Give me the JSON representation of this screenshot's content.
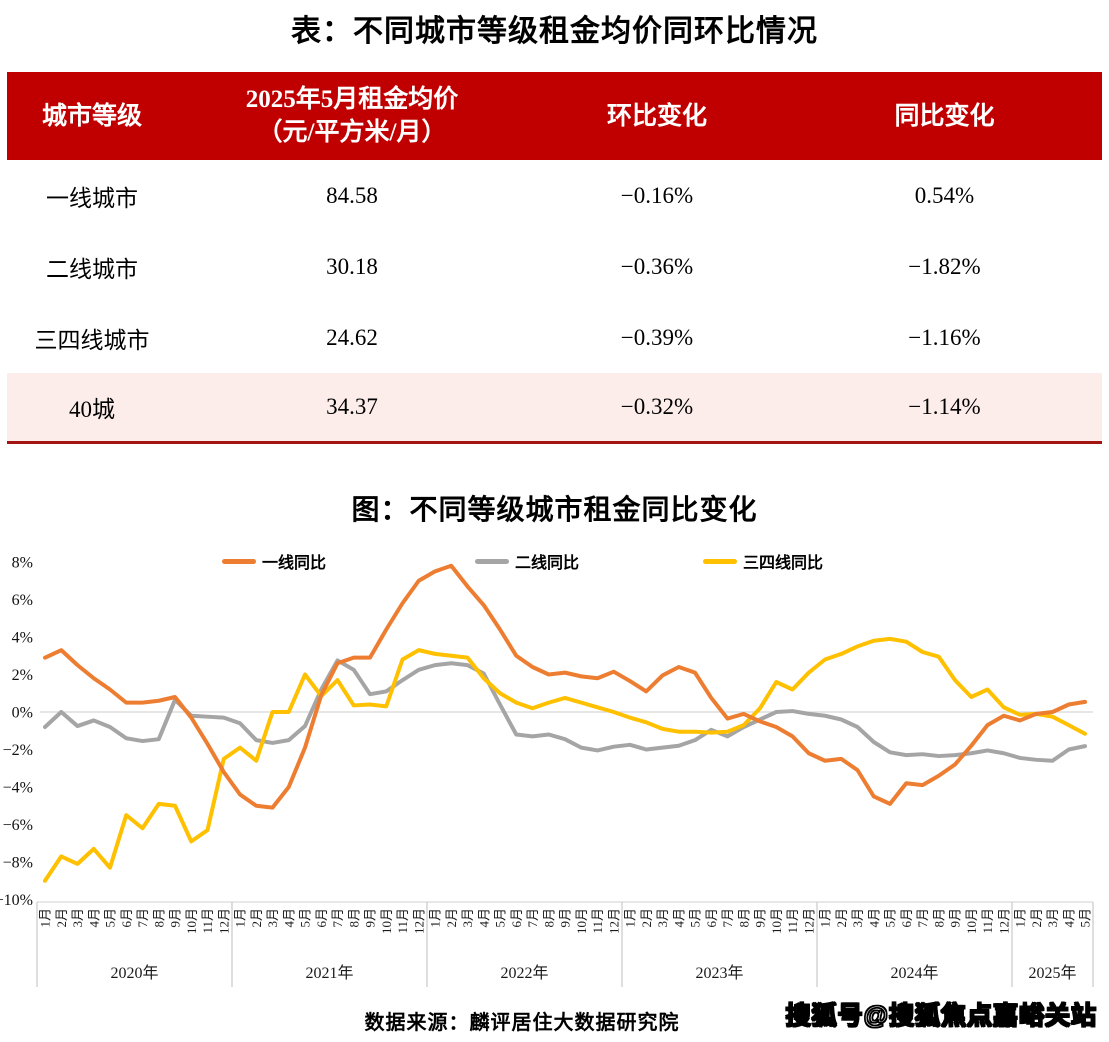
{
  "table": {
    "title": "表：不同城市等级租金均价同环比情况",
    "header": {
      "col1": "城市等级",
      "col2_line1": "2025年5月租金均价",
      "col2_line2": "（元/平方米/月）",
      "col3": "环比变化",
      "col4": "同比变化"
    },
    "rows": [
      {
        "tier": "一线城市",
        "price": "84.58",
        "mom": "−0.16%",
        "yoy": "0.54%",
        "highlight": false
      },
      {
        "tier": "二线城市",
        "price": "30.18",
        "mom": "−0.36%",
        "yoy": "−1.82%",
        "highlight": false
      },
      {
        "tier": "三四线城市",
        "price": "24.62",
        "mom": "−0.39%",
        "yoy": "−1.16%",
        "highlight": false
      },
      {
        "tier": "40城",
        "price": "34.37",
        "mom": "−0.32%",
        "yoy": "−1.14%",
        "highlight": true
      }
    ],
    "header_bg": "#C00000",
    "highlight_bg": "#FCEDEB",
    "bottom_border": "#A31410"
  },
  "chart": {
    "title": "图：不同等级城市租金同比变化",
    "legend": [
      {
        "label": "一线同比",
        "color": "#ED7D31"
      },
      {
        "label": "二线同比",
        "color": "#A5A5A5"
      },
      {
        "label": "三四线同比",
        "color": "#FFC000"
      }
    ]
  },
  "chart_data": {
    "type": "line",
    "title": "图：不同等级城市租金同比变化",
    "ylabel": "",
    "xlabel": "",
    "unit": "%",
    "ylim": [
      -10,
      8
    ],
    "grid": "zero-line-only",
    "legend_position": "top",
    "ytick_labels": [
      "8%",
      "6%",
      "4%",
      "2%",
      "0%",
      "−2%",
      "−4%",
      "−6%",
      "−8%",
      "−10%"
    ],
    "ytick_values": [
      8,
      6,
      4,
      2,
      0,
      -2,
      -4,
      -6,
      -8,
      -10
    ],
    "year_labels": [
      "2020年",
      "2021年",
      "2022年",
      "2023年",
      "2024年",
      "2025年"
    ],
    "x_month_labels": [
      "1月",
      "2月",
      "3月",
      "4月",
      "5月",
      "6月",
      "7月",
      "8月",
      "9月",
      "10月",
      "11月",
      "12月",
      "1月",
      "2月",
      "3月",
      "4月",
      "5月",
      "6月",
      "7月",
      "8月",
      "9月",
      "10月",
      "11月",
      "12月",
      "1月",
      "2月",
      "3月",
      "4月",
      "5月",
      "6月",
      "7月",
      "8月",
      "9月",
      "10月",
      "11月",
      "12月",
      "1月",
      "2月",
      "3月",
      "4月",
      "5月",
      "6月",
      "7月",
      "8月",
      "9月",
      "10月",
      "11月",
      "12月",
      "1月",
      "2月",
      "3月",
      "4月",
      "5月",
      "6月",
      "7月",
      "8月",
      "9月",
      "10月",
      "11月",
      "12月",
      "1月",
      "2月",
      "3月",
      "4月",
      "5月"
    ],
    "series": [
      {
        "name": "一线同比",
        "color": "#ED7D31",
        "values": [
          2.9,
          3.3,
          2.5,
          1.8,
          1.2,
          0.5,
          0.5,
          0.6,
          0.8,
          -0.3,
          -1.7,
          -3.2,
          -4.4,
          -5.0,
          -5.1,
          -4.0,
          -1.9,
          0.9,
          2.6,
          2.9,
          2.9,
          4.4,
          5.8,
          7.0,
          7.5,
          7.8,
          6.7,
          5.7,
          4.4,
          3.0,
          2.4,
          2.0,
          2.1,
          1.9,
          1.8,
          2.15,
          1.65,
          1.1,
          1.95,
          2.4,
          2.1,
          0.75,
          -0.35,
          -0.1,
          -0.5,
          -0.8,
          -1.3,
          -2.2,
          -2.6,
          -2.5,
          -3.1,
          -4.5,
          -4.9,
          -3.8,
          -3.9,
          -3.4,
          -2.8,
          -1.8,
          -0.7,
          -0.2,
          -0.45,
          -0.1,
          0.0,
          0.4,
          0.54
        ]
      },
      {
        "name": "二线同比",
        "color": "#A5A5A5",
        "values": [
          -0.8,
          0.0,
          -0.75,
          -0.45,
          -0.8,
          -1.4,
          -1.55,
          -1.45,
          0.65,
          -0.2,
          -0.25,
          -0.3,
          -0.6,
          -1.5,
          -1.65,
          -1.5,
          -0.75,
          1.2,
          2.75,
          2.25,
          0.95,
          1.1,
          1.7,
          2.25,
          2.5,
          2.6,
          2.5,
          2.05,
          0.4,
          -1.2,
          -1.3,
          -1.2,
          -1.45,
          -1.9,
          -2.05,
          -1.85,
          -1.75,
          -2.0,
          -1.9,
          -1.8,
          -1.5,
          -0.95,
          -1.3,
          -0.8,
          -0.4,
          0.0,
          0.05,
          -0.1,
          -0.2,
          -0.4,
          -0.8,
          -1.6,
          -2.15,
          -2.3,
          -2.25,
          -2.35,
          -2.3,
          -2.2,
          -2.05,
          -2.2,
          -2.45,
          -2.55,
          -2.6,
          -2.0,
          -1.82
        ]
      },
      {
        "name": "三四线同比",
        "color": "#FFC000",
        "values": [
          -9.0,
          -7.7,
          -8.1,
          -7.3,
          -8.3,
          -5.5,
          -6.2,
          -4.9,
          -5.0,
          -6.9,
          -6.3,
          -2.5,
          -1.9,
          -2.6,
          0.0,
          0.0,
          2.0,
          0.85,
          1.7,
          0.35,
          0.4,
          0.3,
          2.8,
          3.3,
          3.1,
          3.0,
          2.9,
          1.8,
          1.0,
          0.5,
          0.2,
          0.5,
          0.75,
          0.5,
          0.25,
          0.0,
          -0.3,
          -0.55,
          -0.9,
          -1.05,
          -1.05,
          -1.1,
          -1.05,
          -0.7,
          0.2,
          1.6,
          1.2,
          2.1,
          2.8,
          3.1,
          3.5,
          3.8,
          3.9,
          3.75,
          3.2,
          2.95,
          1.7,
          0.8,
          1.2,
          0.25,
          -0.15,
          -0.1,
          -0.25,
          -0.7,
          -1.16
        ]
      }
    ]
  },
  "footer": {
    "source": "数据来源：麟评居住大数据研究院",
    "watermark": "搜狐号@搜狐焦点嘉峪关站"
  }
}
